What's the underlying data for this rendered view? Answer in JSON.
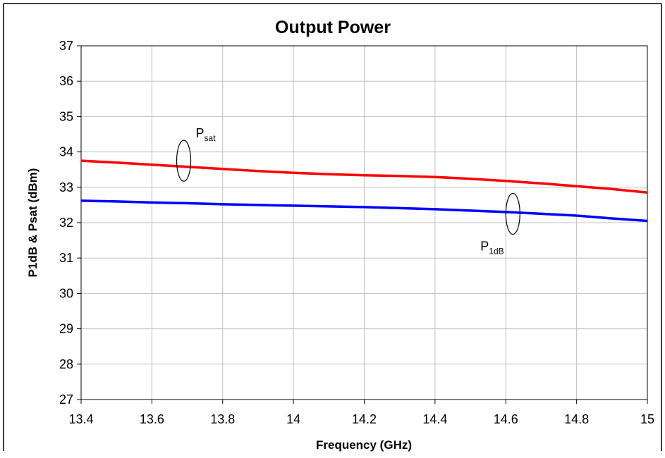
{
  "chart_data": {
    "type": "line",
    "title": "Output Power",
    "xlabel": "Frequency (GHz)",
    "ylabel": "P1dB & Psat (dBm)",
    "xlim": [
      13.4,
      15
    ],
    "ylim": [
      27,
      37
    ],
    "x_ticks": [
      "13.4",
      "13.6",
      "13.8",
      "14",
      "14.2",
      "14.4",
      "14.6",
      "14.8",
      "15"
    ],
    "y_ticks": [
      "27",
      "28",
      "29",
      "30",
      "31",
      "32",
      "33",
      "34",
      "35",
      "36",
      "37"
    ],
    "grid": true,
    "legend": "none",
    "series": [
      {
        "color": "#ff0000",
        "x": [
          13.4,
          13.5,
          13.6,
          13.7,
          13.8,
          13.9,
          14.0,
          14.1,
          14.2,
          14.3,
          14.4,
          14.5,
          14.6,
          14.7,
          14.8,
          14.9,
          15.0
        ],
        "y": [
          33.75,
          33.7,
          33.64,
          33.58,
          33.52,
          33.46,
          33.41,
          33.37,
          33.34,
          33.32,
          33.29,
          33.24,
          33.18,
          33.11,
          33.03,
          32.95,
          32.85
        ]
      },
      {
        "color": "#0000ff",
        "x": [
          13.4,
          13.5,
          13.6,
          13.7,
          13.8,
          13.9,
          14.0,
          14.1,
          14.2,
          14.3,
          14.4,
          14.5,
          14.6,
          14.7,
          14.8,
          14.9,
          15.0
        ],
        "y": [
          32.62,
          32.6,
          32.57,
          32.55,
          32.52,
          32.5,
          32.48,
          32.46,
          32.44,
          32.41,
          32.38,
          32.34,
          32.3,
          32.25,
          32.2,
          32.12,
          32.05
        ]
      }
    ],
    "annotations": [
      {
        "main": "P",
        "sub": "sat",
        "x": 13.69,
        "y": 33.75
      },
      {
        "main": "P",
        "sub": "1dB",
        "x": 14.62,
        "y": 32.25
      }
    ]
  }
}
